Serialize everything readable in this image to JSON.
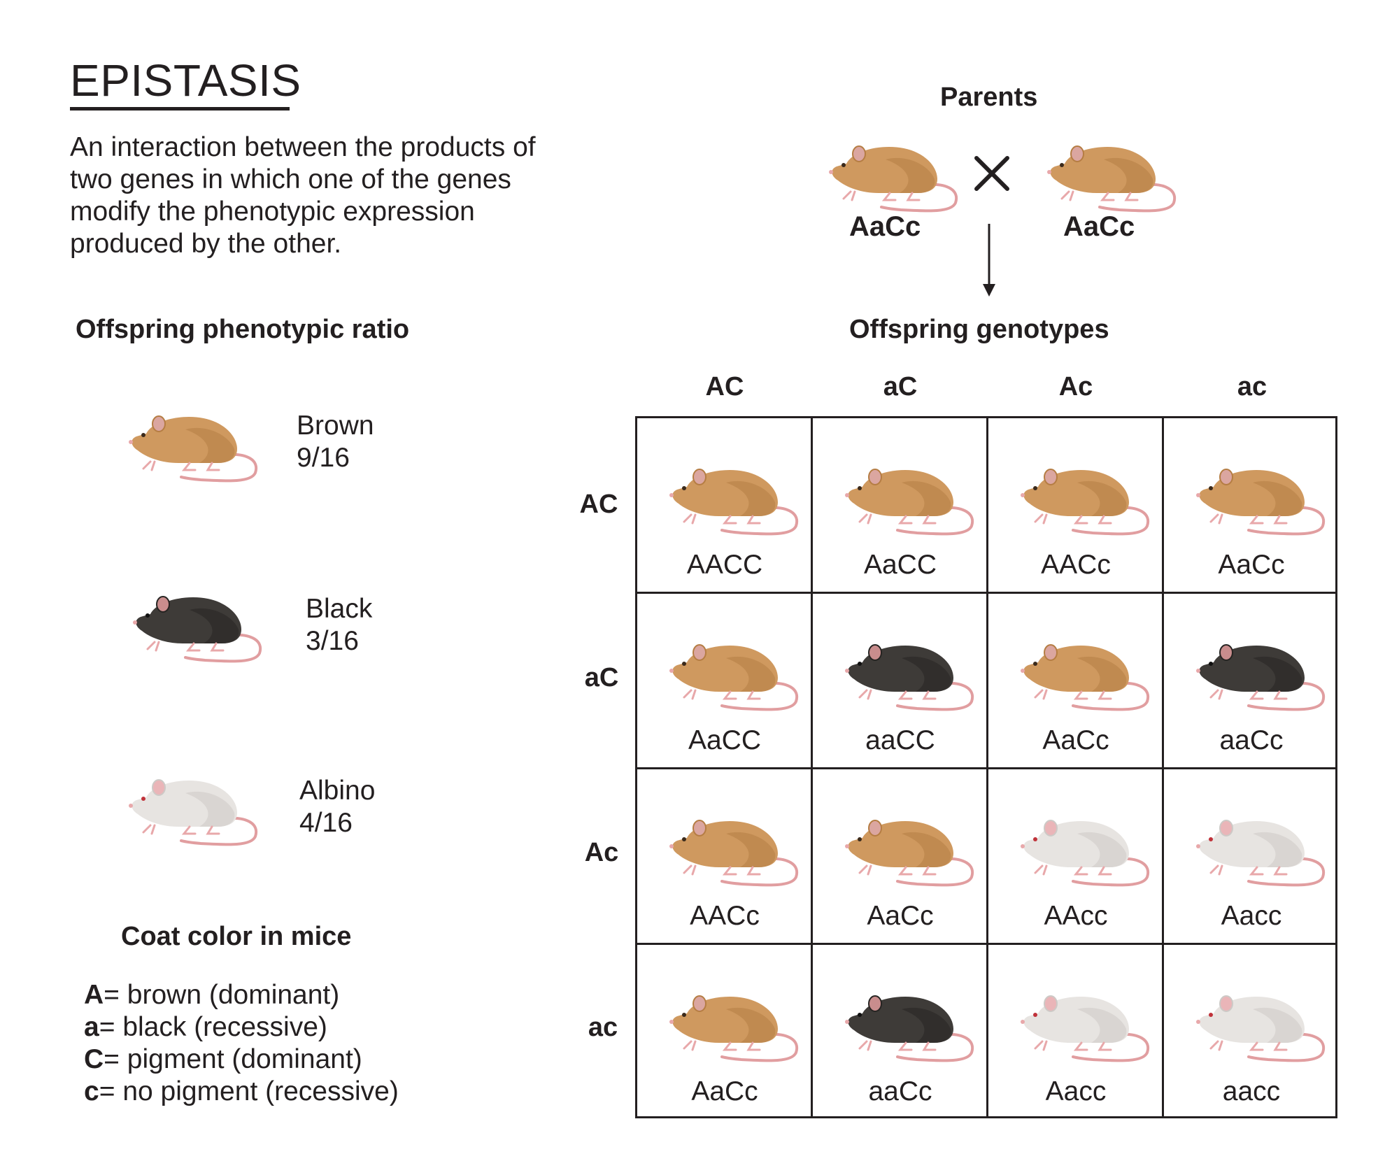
{
  "title": "EPISTASIS",
  "description": [
    "An interaction between the products of",
    "two genes in which one of the genes",
    "modify the phenotypic expression",
    "produced by the other."
  ],
  "phenotype_heading": "Offspring phenotypic ratio",
  "phenotypes": [
    {
      "name": "Brown",
      "ratio": "9/16",
      "color": "brown"
    },
    {
      "name": "Black",
      "ratio": "3/16",
      "color": "black"
    },
    {
      "name": "Albino",
      "ratio": "4/16",
      "color": "albino"
    }
  ],
  "legend_heading": "Coat color in mice",
  "legend": [
    {
      "allele": "A",
      "text": "= brown (dominant)"
    },
    {
      "allele": "a",
      "text": "= black (recessive)"
    },
    {
      "allele": "C",
      "text": "= pigment (dominant)"
    },
    {
      "allele": "c",
      "text": "= no pigment (recessive)"
    }
  ],
  "parents": {
    "heading": "Parents",
    "left": "AaCc",
    "right": "AaCc",
    "cross_symbol": "×"
  },
  "offspring_heading": "Offspring genotypes",
  "gametes_columns": [
    "AC",
    "aC",
    "Ac",
    "ac"
  ],
  "gametes_rows": [
    "AC",
    "aC",
    "Ac",
    "ac"
  ],
  "punnett": [
    [
      {
        "g": "AACC",
        "p": "brown"
      },
      {
        "g": "AaCC",
        "p": "brown"
      },
      {
        "g": "AACc",
        "p": "brown"
      },
      {
        "g": "AaCc",
        "p": "brown"
      }
    ],
    [
      {
        "g": "AaCC",
        "p": "brown"
      },
      {
        "g": "aaCC",
        "p": "black"
      },
      {
        "g": "AaCc",
        "p": "brown"
      },
      {
        "g": "aaCc",
        "p": "black"
      }
    ],
    [
      {
        "g": "AACc",
        "p": "brown"
      },
      {
        "g": "AaCc",
        "p": "brown"
      },
      {
        "g": "AAcc",
        "p": "albino"
      },
      {
        "g": "Aacc",
        "p": "albino"
      }
    ],
    [
      {
        "g": "AaCc",
        "p": "brown"
      },
      {
        "g": "aaCc",
        "p": "black"
      },
      {
        "g": "Aacc",
        "p": "albino"
      },
      {
        "g": "aacc",
        "p": "albino"
      }
    ]
  ],
  "colors": {
    "brown": {
      "body": "#cf995f",
      "shade": "#b57d43",
      "ear": "#dba6a0",
      "eye": "#3a2a1c"
    },
    "black": {
      "body": "#3e3b38",
      "shade": "#262422",
      "ear": "#c98d8d",
      "eye": "#111111"
    },
    "albino": {
      "body": "#e7e4e1",
      "shade": "#cdc9c6",
      "ear": "#eab5b8",
      "eye": "#c0323a"
    },
    "tail": "#e19ea0",
    "foot": "#e8a8aa",
    "ink": "#231f20"
  }
}
